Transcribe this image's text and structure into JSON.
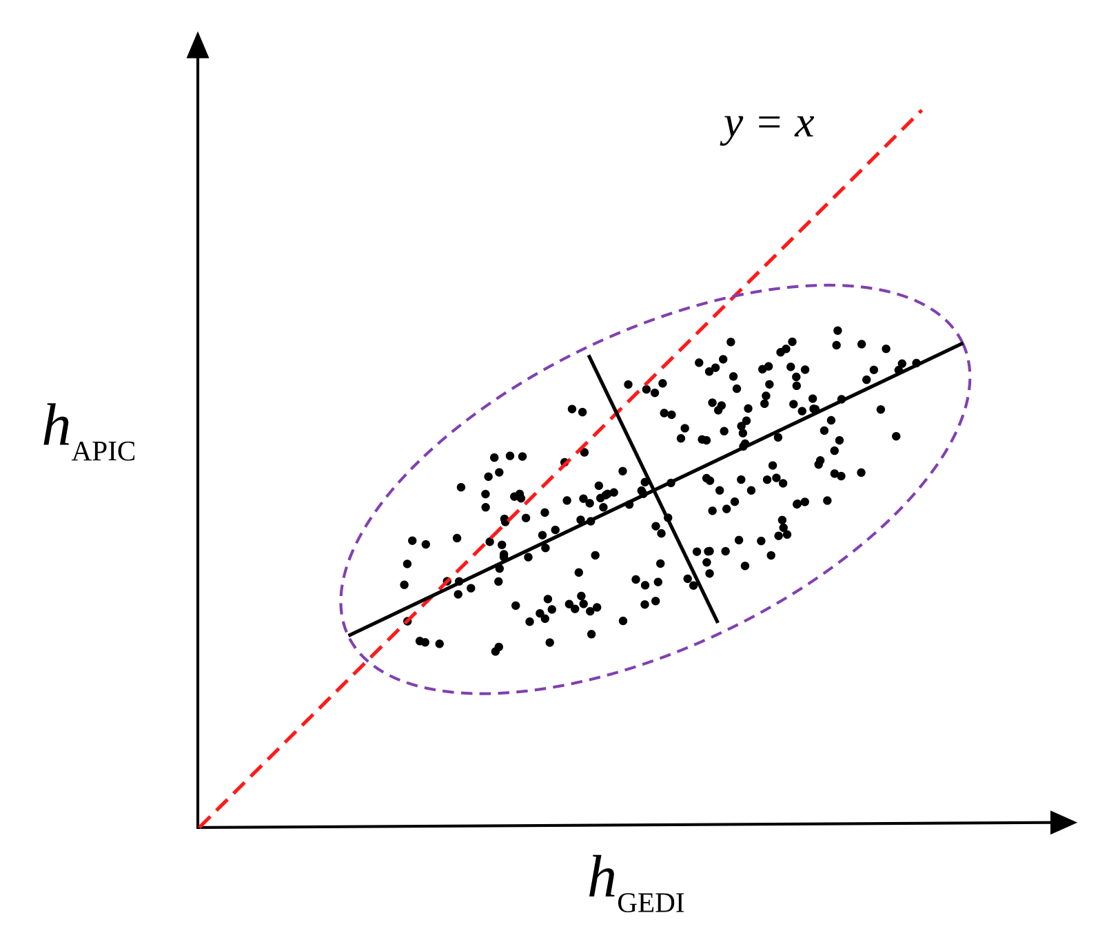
{
  "annotation": "y = x",
  "y_axis_label": {
    "symbol": "h",
    "subscript": "APIC"
  },
  "x_axis_label": {
    "symbol": "h",
    "subscript": "GEDI"
  }
}
